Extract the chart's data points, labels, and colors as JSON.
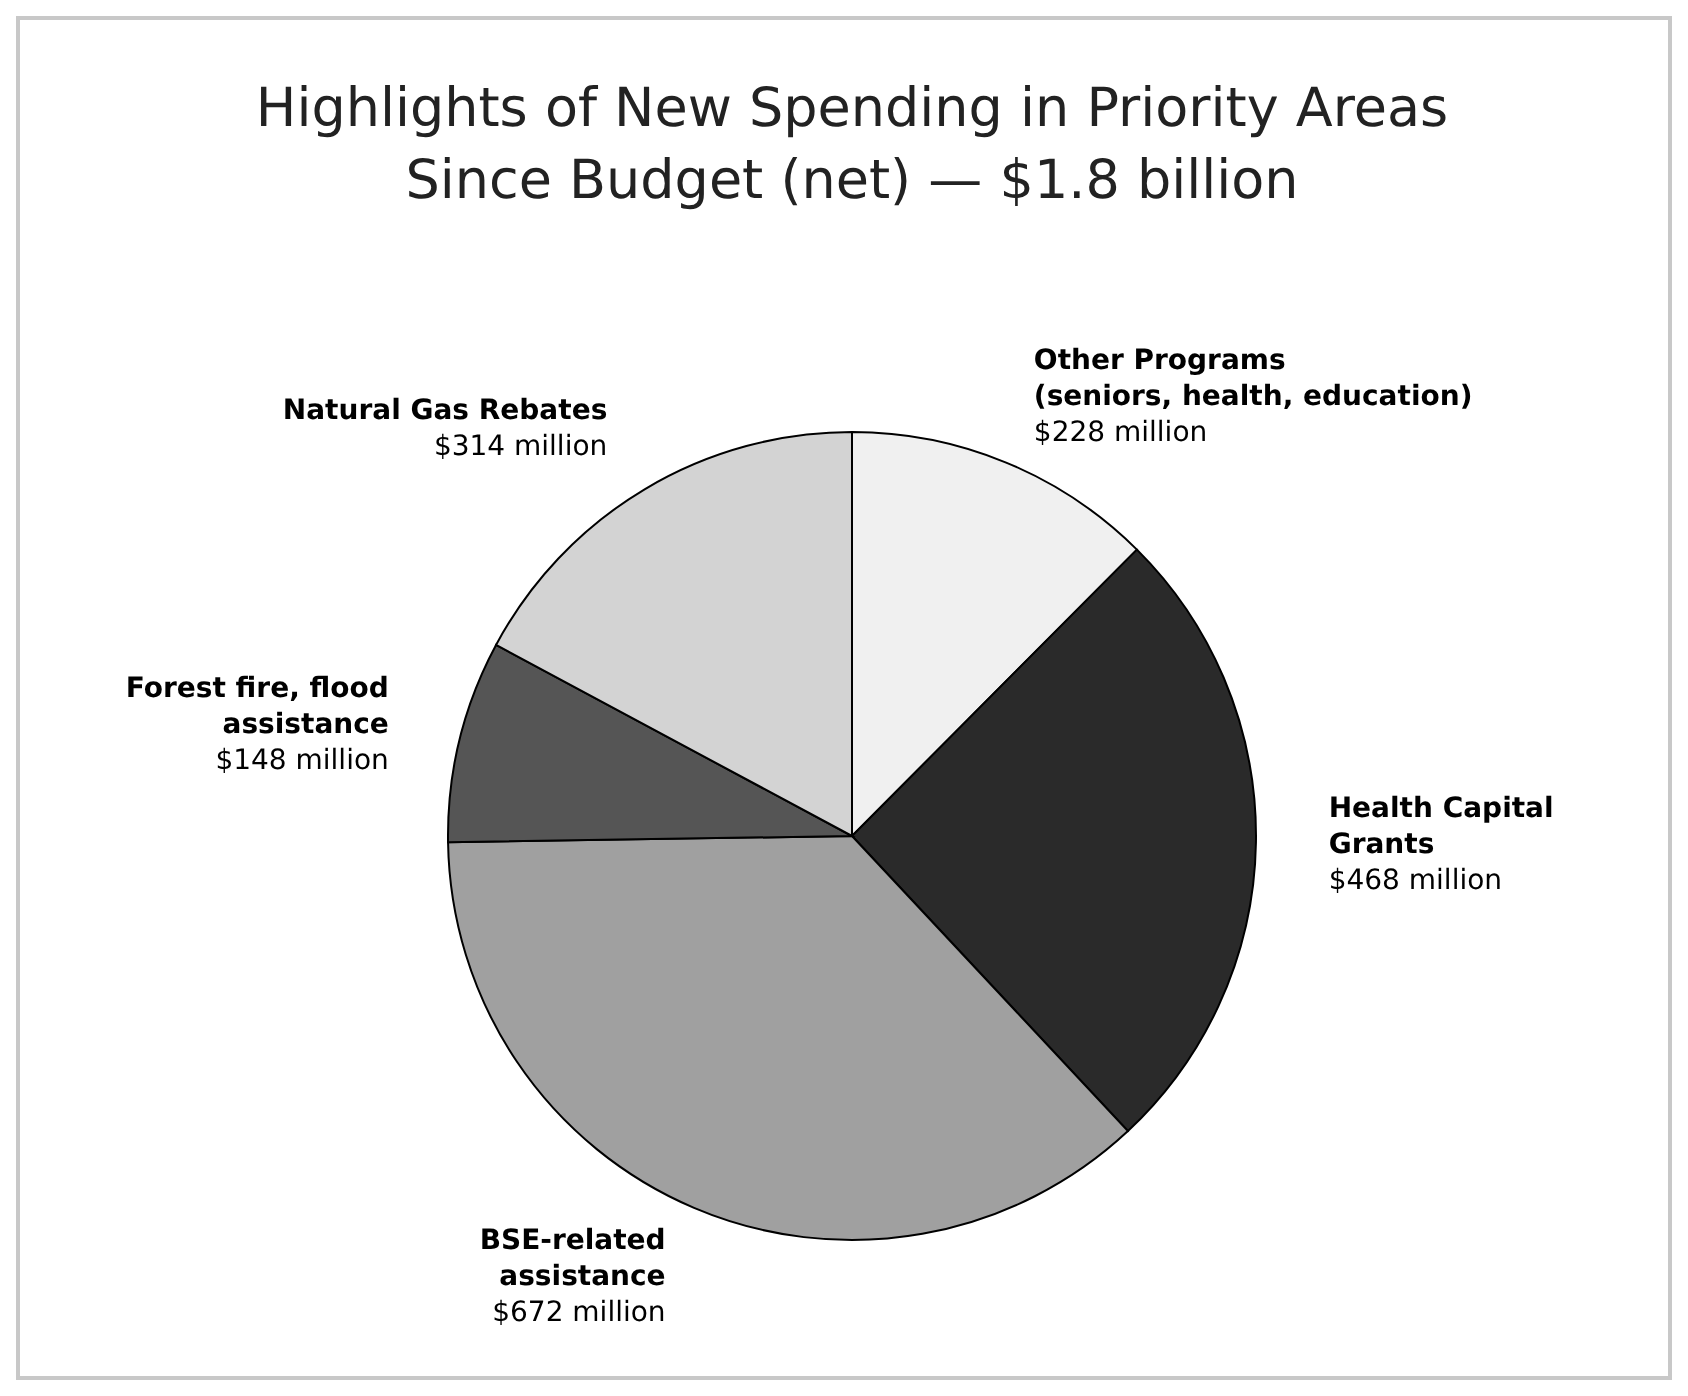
{
  "chart_data": {
    "type": "pie",
    "title": "Highlights of New Spending in Priority Areas\nSince Budget (net) — $1.8 billion",
    "categories": [
      "Other Programs\n(seniors, health, education)",
      "Health Capital\nGrants",
      "BSE-related\nassistance",
      "Forest fire, flood\nassistance",
      "Natural Gas Rebates"
    ],
    "values": [
      228,
      468,
      672,
      148,
      314
    ],
    "value_labels": [
      "$228 million",
      "$468 million",
      "$672 million",
      "$148 million",
      "$314 million"
    ],
    "colors": [
      "#f0f0f0",
      "#2a2a2a",
      "#a0a0a0",
      "#555555",
      "#d3d3d3"
    ]
  }
}
